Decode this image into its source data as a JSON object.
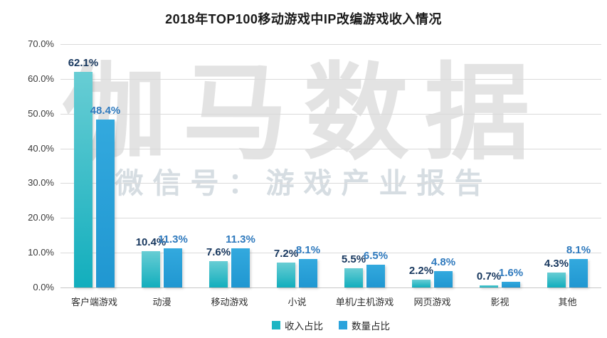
{
  "title": "2018年TOP100移动游戏中IP改编游戏收入情况",
  "watermark": {
    "main": "伽马数据",
    "sub": "微信号：游戏产业报告"
  },
  "chart_data": {
    "type": "bar",
    "title": "2018年TOP100移动游戏中IP改编游戏收入情况",
    "categories": [
      "客户端游戏",
      "动漫",
      "移动游戏",
      "小说",
      "单机/主机游戏",
      "网页游戏",
      "影视",
      "其他"
    ],
    "series": [
      {
        "name": "收入占比",
        "values": [
          62.1,
          10.4,
          7.6,
          7.2,
          5.5,
          2.2,
          0.7,
          4.3
        ],
        "labels": [
          "62.1%",
          "10.4%",
          "7.6%",
          "7.2%",
          "5.5%",
          "2.2%",
          "0.7%",
          "4.3%"
        ],
        "bar_color_top": "#68cdd4",
        "bar_color_bottom": "#12aebd",
        "swatch_color": "#1cb5c3",
        "label_color": "#17375e"
      },
      {
        "name": "数量占比",
        "values": [
          48.4,
          11.3,
          11.3,
          8.1,
          6.5,
          4.8,
          1.6,
          8.1
        ],
        "labels": [
          "48.4%",
          "11.3%",
          "11.3%",
          "8.1%",
          "6.5%",
          "4.8%",
          "1.6%",
          "8.1%"
        ],
        "bar_color_top": "#33a9de",
        "bar_color_bottom": "#2097d1",
        "swatch_color": "#2ba3dc",
        "label_color": "#2e79bd"
      }
    ],
    "y_ticks": [
      "0.0%",
      "10.0%",
      "20.0%",
      "30.0%",
      "40.0%",
      "50.0%",
      "60.0%",
      "70.0%"
    ],
    "ylim": [
      0,
      70
    ],
    "value_suffix": "%",
    "grid": true,
    "legend_position": "bottom"
  }
}
